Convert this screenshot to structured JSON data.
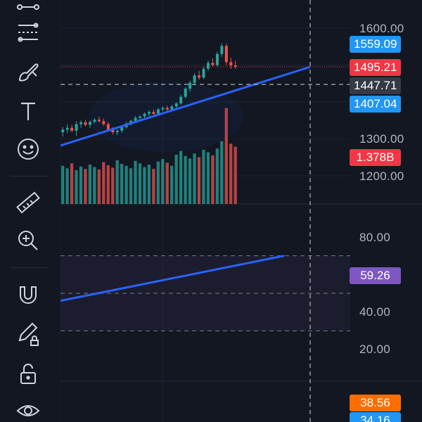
{
  "toolbar": {
    "tools": [
      {
        "name": "trend-tools-icon"
      },
      {
        "name": "fib-tools-icon"
      },
      {
        "name": "brush-icon"
      },
      {
        "name": "text-icon"
      },
      {
        "name": "emoji-icon"
      },
      {
        "name": "ruler-icon"
      },
      {
        "name": "zoom-in-icon"
      },
      {
        "name": "magnet-icon"
      },
      {
        "name": "lock-drawing-icon"
      },
      {
        "name": "unlock-icon"
      },
      {
        "name": "eye-icon"
      }
    ]
  },
  "price_axis": {
    "ticks": [
      "1600.00",
      "1300.00",
      "1200.00"
    ],
    "tags": {
      "high_line": "1559.09",
      "last_price": "1495.21",
      "crosshair": "1447.71",
      "low_line": "1407.04",
      "volume": "1.378B"
    }
  },
  "oscillator_axis": {
    "ticks": [
      "80.00",
      "40.00",
      "20.00"
    ],
    "tags": {
      "rsi": "59.26",
      "orange": "38.56",
      "blue": "34.16"
    }
  },
  "colors": {
    "background": "#131722",
    "up": "#26a69a",
    "down": "#ef5350",
    "trendline": "#2962ff",
    "tag_blue": "#2196f3",
    "tag_red": "#f23645",
    "tag_gray": "#363a45",
    "tag_purple": "#7e57c2",
    "tag_orange": "#ff6d00"
  },
  "chart_data": {
    "type": "candlestick",
    "price_range": [
      1150,
      1650
    ],
    "candles": [
      {
        "o": 1318,
        "h": 1332,
        "l": 1306,
        "c": 1325
      },
      {
        "o": 1325,
        "h": 1340,
        "l": 1315,
        "c": 1330
      },
      {
        "o": 1330,
        "h": 1338,
        "l": 1318,
        "c": 1322
      },
      {
        "o": 1322,
        "h": 1348,
        "l": 1308,
        "c": 1340
      },
      {
        "o": 1340,
        "h": 1350,
        "l": 1330,
        "c": 1345
      },
      {
        "o": 1345,
        "h": 1352,
        "l": 1334,
        "c": 1338
      },
      {
        "o": 1338,
        "h": 1350,
        "l": 1330,
        "c": 1346
      },
      {
        "o": 1346,
        "h": 1356,
        "l": 1342,
        "c": 1352
      },
      {
        "o": 1352,
        "h": 1360,
        "l": 1344,
        "c": 1348
      },
      {
        "o": 1348,
        "h": 1355,
        "l": 1336,
        "c": 1340
      },
      {
        "o": 1340,
        "h": 1346,
        "l": 1320,
        "c": 1325
      },
      {
        "o": 1325,
        "h": 1332,
        "l": 1312,
        "c": 1318
      },
      {
        "o": 1318,
        "h": 1326,
        "l": 1310,
        "c": 1322
      },
      {
        "o": 1322,
        "h": 1336,
        "l": 1316,
        "c": 1332
      },
      {
        "o": 1332,
        "h": 1346,
        "l": 1328,
        "c": 1342
      },
      {
        "o": 1342,
        "h": 1352,
        "l": 1336,
        "c": 1349
      },
      {
        "o": 1349,
        "h": 1362,
        "l": 1344,
        "c": 1357
      },
      {
        "o": 1357,
        "h": 1364,
        "l": 1350,
        "c": 1361
      },
      {
        "o": 1361,
        "h": 1372,
        "l": 1355,
        "c": 1368
      },
      {
        "o": 1368,
        "h": 1378,
        "l": 1360,
        "c": 1373
      },
      {
        "o": 1373,
        "h": 1380,
        "l": 1364,
        "c": 1368
      },
      {
        "o": 1368,
        "h": 1384,
        "l": 1364,
        "c": 1380
      },
      {
        "o": 1380,
        "h": 1388,
        "l": 1374,
        "c": 1384
      },
      {
        "o": 1384,
        "h": 1390,
        "l": 1376,
        "c": 1380
      },
      {
        "o": 1380,
        "h": 1392,
        "l": 1376,
        "c": 1388
      },
      {
        "o": 1388,
        "h": 1400,
        "l": 1384,
        "c": 1396
      },
      {
        "o": 1396,
        "h": 1420,
        "l": 1392,
        "c": 1414
      },
      {
        "o": 1414,
        "h": 1440,
        "l": 1410,
        "c": 1436
      },
      {
        "o": 1436,
        "h": 1458,
        "l": 1428,
        "c": 1452
      },
      {
        "o": 1452,
        "h": 1478,
        "l": 1446,
        "c": 1472
      },
      {
        "o": 1472,
        "h": 1484,
        "l": 1460,
        "c": 1466
      },
      {
        "o": 1466,
        "h": 1496,
        "l": 1462,
        "c": 1490
      },
      {
        "o": 1490,
        "h": 1512,
        "l": 1484,
        "c": 1506
      },
      {
        "o": 1506,
        "h": 1518,
        "l": 1496,
        "c": 1500
      },
      {
        "o": 1500,
        "h": 1536,
        "l": 1496,
        "c": 1530
      },
      {
        "o": 1530,
        "h": 1560,
        "l": 1522,
        "c": 1552
      },
      {
        "o": 1552,
        "h": 1558,
        "l": 1500,
        "c": 1508
      },
      {
        "o": 1508,
        "h": 1520,
        "l": 1490,
        "c": 1499
      },
      {
        "o": 1499,
        "h": 1512,
        "l": 1490,
        "c": 1495
      }
    ],
    "volume": [
      0.62,
      0.58,
      0.66,
      0.55,
      0.61,
      0.57,
      0.64,
      0.6,
      0.56,
      0.68,
      0.63,
      0.59,
      0.71,
      0.65,
      0.62,
      0.58,
      0.7,
      0.66,
      0.6,
      0.64,
      0.57,
      0.69,
      0.73,
      0.67,
      0.62,
      0.8,
      0.86,
      0.78,
      0.74,
      0.82,
      0.76,
      0.88,
      0.84,
      0.79,
      0.9,
      1.02,
      1.56,
      0.98,
      0.93
    ],
    "volume_max": 1.6,
    "trendline_price": {
      "from": 1282,
      "to": 1495
    },
    "oscillator_range": [
      0,
      100
    ],
    "oscillator_levels": [
      70,
      50,
      30
    ],
    "oscillator_trendline": {
      "from": 46,
      "to": 70
    }
  }
}
